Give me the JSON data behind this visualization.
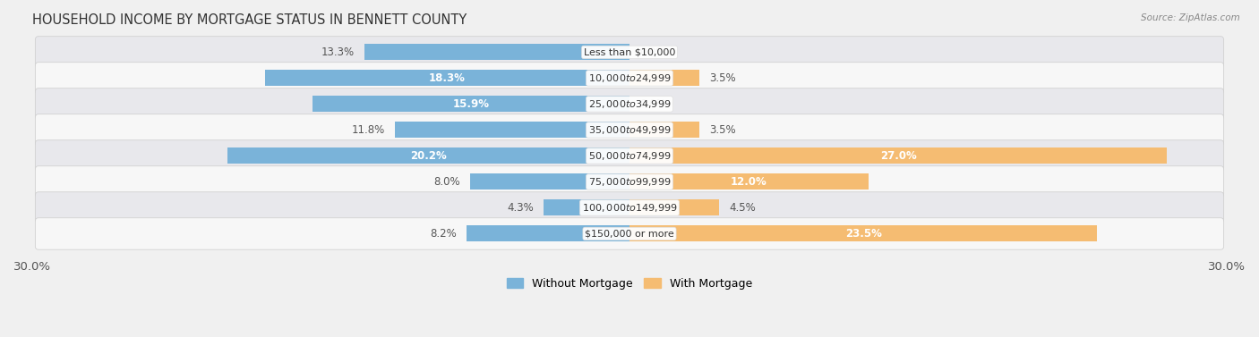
{
  "title": "HOUSEHOLD INCOME BY MORTGAGE STATUS IN BENNETT COUNTY",
  "source": "Source: ZipAtlas.com",
  "categories": [
    "Less than $10,000",
    "$10,000 to $24,999",
    "$25,000 to $34,999",
    "$35,000 to $49,999",
    "$50,000 to $74,999",
    "$75,000 to $99,999",
    "$100,000 to $149,999",
    "$150,000 or more"
  ],
  "without_mortgage": [
    13.3,
    18.3,
    15.9,
    11.8,
    20.2,
    8.0,
    4.3,
    8.2
  ],
  "with_mortgage": [
    0.0,
    3.5,
    0.0,
    3.5,
    27.0,
    12.0,
    4.5,
    23.5
  ],
  "without_mortgage_color": "#7ab3d9",
  "with_mortgage_color": "#f5bc72",
  "xlim": 30.0,
  "background_color": "#f0f0f0",
  "row_bg_light": "#f7f7f7",
  "row_bg_dark": "#e8e8ec",
  "bar_height": 0.62,
  "title_fontsize": 10.5,
  "bar_label_fontsize": 8.5,
  "category_fontsize": 8.0,
  "axis_label_fontsize": 9.5
}
